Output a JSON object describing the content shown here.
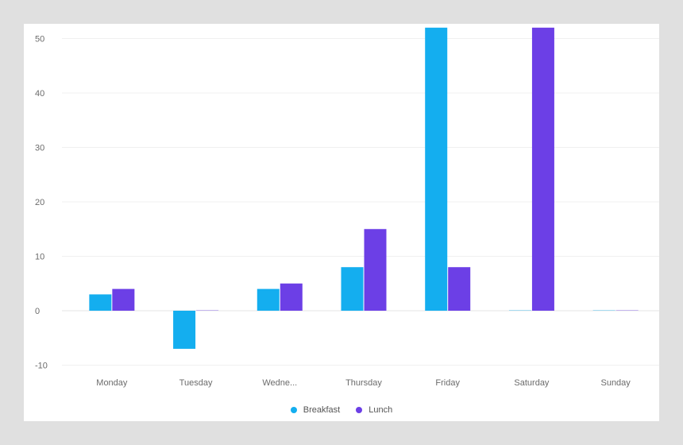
{
  "chart_data": {
    "type": "bar",
    "categories": [
      "Monday",
      "Tuesday",
      "Wedne...",
      "Thursday",
      "Friday",
      "Saturday",
      "Sunday"
    ],
    "series": [
      {
        "name": "Breakfast",
        "color": "#14aeef",
        "values": [
          3,
          -7,
          4,
          8,
          52,
          0,
          0
        ]
      },
      {
        "name": "Lunch",
        "color": "#6c3fe6",
        "values": [
          4,
          0,
          5,
          15,
          8,
          52,
          0
        ]
      }
    ],
    "ylim": [
      -12,
      52
    ],
    "yticks": [
      -10,
      0,
      10,
      20,
      30,
      40,
      50
    ],
    "grid": true,
    "legend_position": "bottom"
  }
}
